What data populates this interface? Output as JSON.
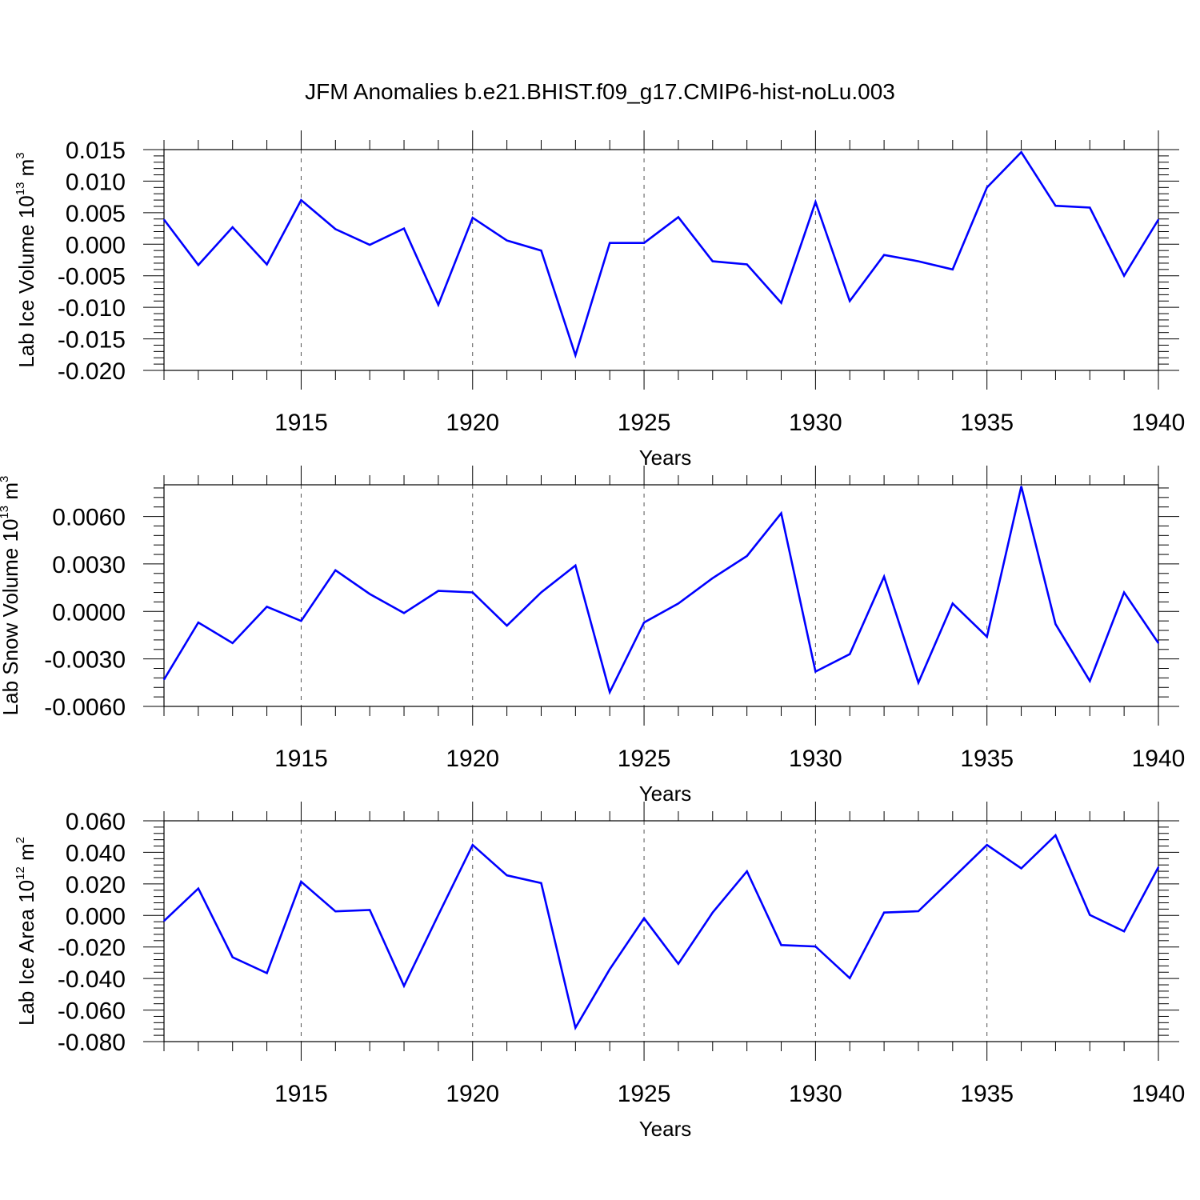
{
  "title": "JFM Anomalies b.e21.BHIST.f09_g17.CMIP6-hist-noLu.003",
  "line_color": "#0000ff",
  "chart_data": [
    {
      "type": "line",
      "title": "",
      "xlabel": "Years",
      "ylabel": {
        "base": "Lab Ice Volume 10",
        "exp": "13",
        "unit": " m",
        "unit_exp": "3"
      },
      "xlim": [
        1911,
        1940
      ],
      "ylim": [
        -0.02,
        0.015
      ],
      "x_ticks": [
        "1915",
        "1920",
        "1925",
        "1930",
        "1935",
        "1940"
      ],
      "y_ticks": [
        "-0.020",
        "-0.015",
        "-0.010",
        "-0.005",
        "0.000",
        "0.005",
        "0.010",
        "0.015"
      ],
      "grid": "dashed vertical lines at labeled years",
      "x": [
        1911,
        1912,
        1913,
        1914,
        1915,
        1916,
        1917,
        1918,
        1919,
        1920,
        1921,
        1922,
        1923,
        1924,
        1925,
        1926,
        1927,
        1928,
        1929,
        1930,
        1931,
        1932,
        1933,
        1934,
        1935,
        1936,
        1937,
        1938,
        1939,
        1940
      ],
      "values": [
        0.0039,
        -0.0033,
        0.0027,
        -0.0032,
        0.007,
        0.0024,
        -0.0001,
        0.0025,
        -0.0096,
        0.0042,
        0.0006,
        -0.001,
        -0.0176,
        0.0002,
        0.0002,
        0.0043,
        -0.0027,
        -0.0032,
        -0.0093,
        0.0067,
        -0.009,
        -0.0017,
        -0.0027,
        -0.004,
        0.009,
        0.0146,
        0.0061,
        0.0058,
        -0.005,
        0.0039
      ]
    },
    {
      "type": "line",
      "title": "",
      "xlabel": "Years",
      "ylabel": {
        "base": "Lab Snow Volume 10",
        "exp": "13",
        "unit": " m",
        "unit_exp": "3"
      },
      "xlim": [
        1911,
        1940
      ],
      "ylim": [
        -0.006,
        0.008
      ],
      "x_ticks": [
        "1915",
        "1920",
        "1925",
        "1930",
        "1935",
        "1940"
      ],
      "y_ticks": [
        "-0.0060",
        "-0.0030",
        "0.0000",
        "0.0030",
        "0.0060"
      ],
      "grid": "dashed vertical lines at labeled years",
      "x": [
        1911,
        1912,
        1913,
        1914,
        1915,
        1916,
        1917,
        1918,
        1919,
        1920,
        1921,
        1922,
        1923,
        1924,
        1925,
        1926,
        1927,
        1928,
        1929,
        1930,
        1931,
        1932,
        1933,
        1934,
        1935,
        1936,
        1937,
        1938,
        1939,
        1940
      ],
      "values": [
        -0.0043,
        -0.0007,
        -0.002,
        0.0003,
        -0.0006,
        0.0026,
        0.0011,
        -0.0001,
        0.0013,
        0.0012,
        -0.0009,
        0.0012,
        0.0029,
        -0.0051,
        -0.0007,
        0.0005,
        0.0021,
        0.0035,
        0.0062,
        -0.0038,
        -0.0027,
        0.0022,
        -0.0045,
        0.0005,
        -0.0016,
        0.0079,
        -0.0008,
        -0.0044,
        0.0012,
        -0.002
      ]
    },
    {
      "type": "line",
      "title": "",
      "xlabel": "Years",
      "ylabel": {
        "base": "Lab Ice Area 10",
        "exp": "12",
        "unit": " m",
        "unit_exp": "2"
      },
      "xlim": [
        1911,
        1940
      ],
      "ylim": [
        -0.08,
        0.06
      ],
      "x_ticks": [
        "1915",
        "1920",
        "1925",
        "1930",
        "1935",
        "1940"
      ],
      "y_ticks": [
        "-0.080",
        "-0.060",
        "-0.040",
        "-0.020",
        "0.000",
        "0.020",
        "0.040",
        "0.060"
      ],
      "grid": "dashed vertical lines at labeled years",
      "x": [
        1911,
        1912,
        1913,
        1914,
        1915,
        1916,
        1917,
        1918,
        1919,
        1920,
        1921,
        1922,
        1923,
        1924,
        1925,
        1926,
        1927,
        1928,
        1929,
        1930,
        1931,
        1932,
        1933,
        1934,
        1935,
        1936,
        1937,
        1938,
        1939,
        1940
      ],
      "values": [
        -0.0035,
        0.0171,
        -0.0265,
        -0.0366,
        0.0214,
        0.0026,
        0.0035,
        -0.0447,
        0.0003,
        0.0447,
        0.0254,
        0.0205,
        -0.0712,
        -0.0341,
        -0.0018,
        -0.0307,
        0.0018,
        0.028,
        -0.0188,
        -0.0197,
        -0.0398,
        0.0018,
        0.0027,
        0.0236,
        0.0447,
        0.0298,
        0.0508,
        0.0003,
        -0.0101,
        0.0306
      ]
    }
  ]
}
